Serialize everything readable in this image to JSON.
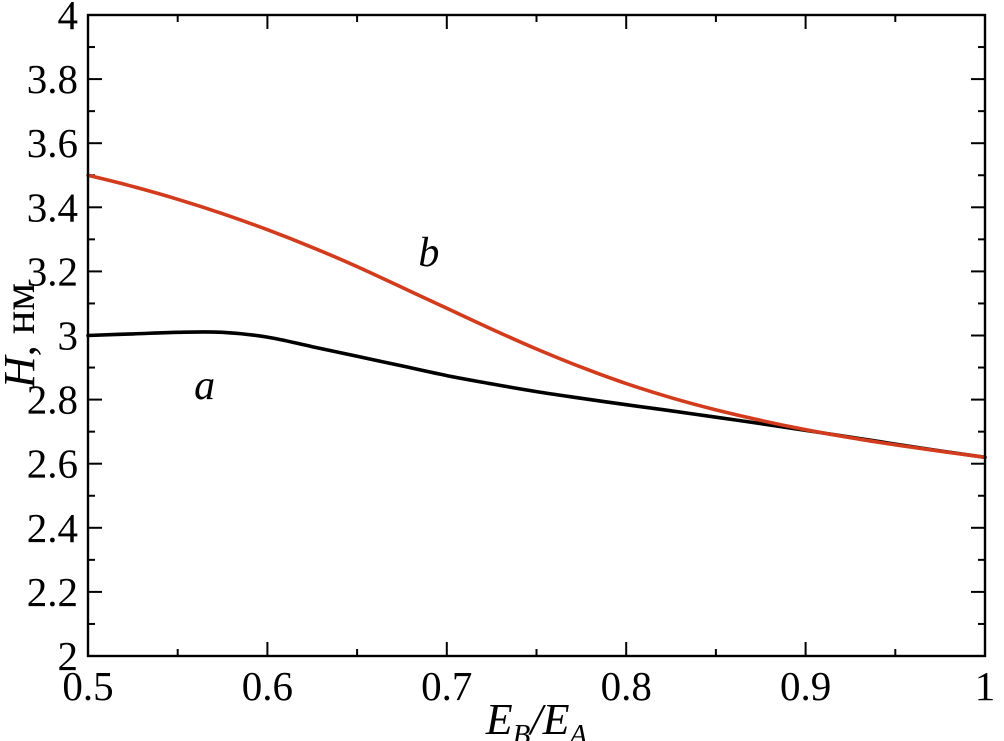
{
  "figure": {
    "background": "#ffffff",
    "frame_color": "#000000"
  },
  "chart_data": {
    "type": "line",
    "title": "",
    "xlabel_plain": "E_B/E_A",
    "xlabel_rich": [
      {
        "text": "E",
        "italic": true,
        "sub": false
      },
      {
        "text": "B",
        "italic": true,
        "sub": true
      },
      {
        "text": "/",
        "italic": true,
        "sub": false
      },
      {
        "text": "E",
        "italic": true,
        "sub": false
      },
      {
        "text": "A",
        "italic": true,
        "sub": true
      }
    ],
    "ylabel_plain": "H, нм",
    "ylabel_rich": [
      {
        "text": "H",
        "italic": true,
        "sub": false
      },
      {
        "text": ", нм",
        "italic": false,
        "sub": false
      }
    ],
    "xlim": [
      0.5,
      1.0
    ],
    "ylim": [
      2.0,
      4.0
    ],
    "x_major_ticks": [
      0.5,
      0.6,
      0.7,
      0.8,
      0.9,
      1.0
    ],
    "x_tick_labels": [
      "0.5",
      "0.6",
      "0.7",
      "0.8",
      "0.9",
      "1"
    ],
    "x_minor_step": 0.05,
    "y_major_ticks": [
      2.0,
      2.2,
      2.4,
      2.6,
      2.8,
      3.0,
      3.2,
      3.4,
      3.6,
      3.8,
      4.0
    ],
    "y_tick_labels": [
      "2",
      "2.2",
      "2.4",
      "2.6",
      "2.8",
      "3",
      "3.2",
      "3.4",
      "3.6",
      "3.8",
      "4"
    ],
    "y_minor_step": 0.1,
    "grid": false,
    "legend": "none",
    "series": [
      {
        "name": "a",
        "color": "#000000",
        "x": [
          0.5,
          0.525,
          0.55,
          0.575,
          0.6,
          0.625,
          0.65,
          0.675,
          0.7,
          0.725,
          0.75,
          0.775,
          0.8,
          0.825,
          0.85,
          0.875,
          0.9,
          0.925,
          0.95,
          0.975,
          1.0
        ],
        "y": [
          3.0,
          3.005,
          3.01,
          3.01,
          2.995,
          2.965,
          2.935,
          2.905,
          2.875,
          2.849,
          2.825,
          2.804,
          2.784,
          2.765,
          2.745,
          2.725,
          2.704,
          2.683,
          2.661,
          2.64,
          2.62
        ]
      },
      {
        "name": "b",
        "color": "#d23b1c",
        "x": [
          0.5,
          0.525,
          0.55,
          0.575,
          0.6,
          0.625,
          0.65,
          0.675,
          0.7,
          0.725,
          0.75,
          0.775,
          0.8,
          0.825,
          0.85,
          0.875,
          0.9,
          0.925,
          0.95,
          0.975,
          1.0
        ],
        "y": [
          3.5,
          3.465,
          3.425,
          3.38,
          3.33,
          3.275,
          3.215,
          3.15,
          3.085,
          3.02,
          2.958,
          2.901,
          2.85,
          2.806,
          2.768,
          2.735,
          2.706,
          2.681,
          2.659,
          2.639,
          2.62
        ]
      }
    ],
    "annotations": [
      {
        "text": "a",
        "x": 0.565,
        "y": 2.845,
        "italic": true,
        "color": "#000000"
      },
      {
        "text": "b",
        "x": 0.69,
        "y": 3.26,
        "italic": true,
        "color": "#000000"
      }
    ]
  }
}
